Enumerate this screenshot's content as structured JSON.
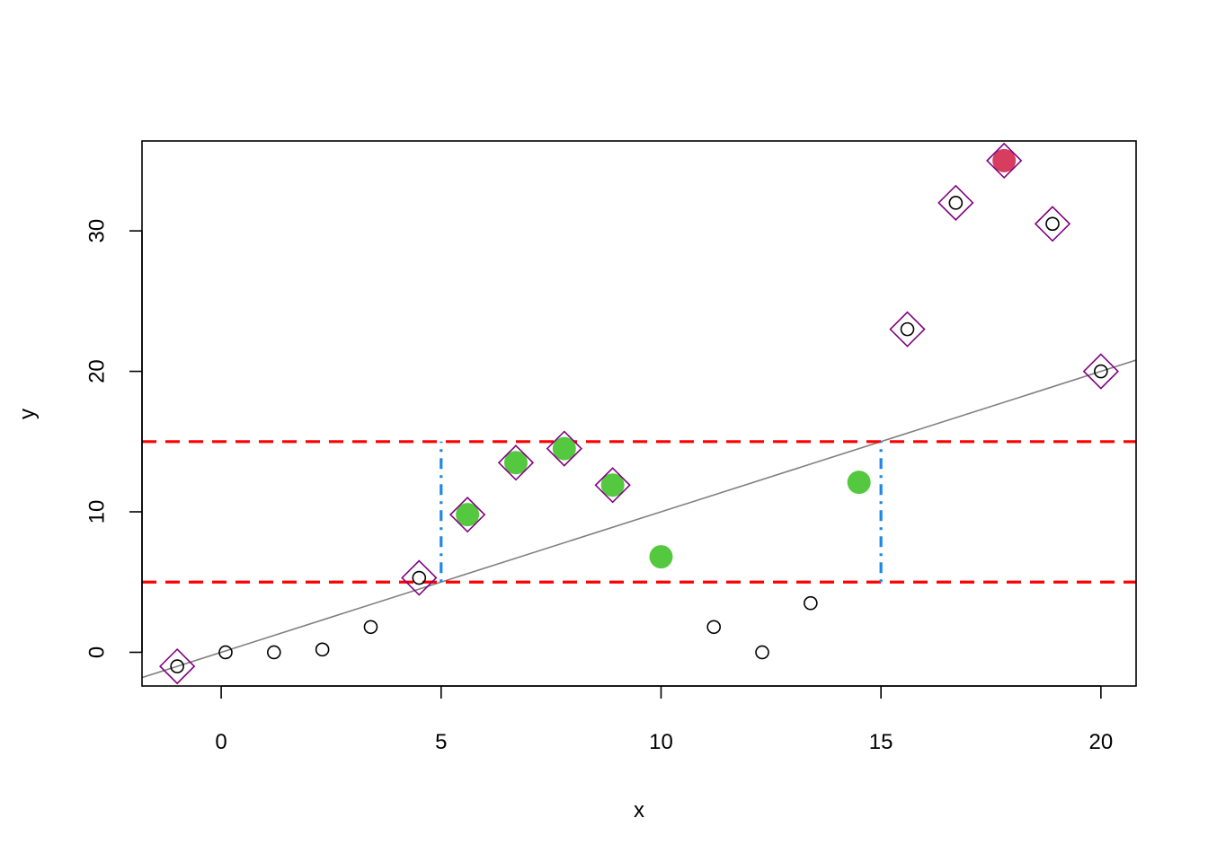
{
  "chart_data": {
    "type": "scatter",
    "xlabel": "x",
    "ylabel": "y",
    "xlim": [
      -1.8,
      20.8
    ],
    "ylim": [
      -2.4,
      36.4
    ],
    "x_ticks": [
      0,
      5,
      10,
      15,
      20
    ],
    "y_ticks": [
      0,
      10,
      20,
      30
    ],
    "grid": false,
    "legend": "none",
    "series": [
      {
        "marker": "open-circle",
        "color": "#000000",
        "points": [
          {
            "x": -1.0,
            "y": -1.0
          },
          {
            "x": 0.1,
            "y": 0.0
          },
          {
            "x": 1.2,
            "y": 0.0
          },
          {
            "x": 2.3,
            "y": 0.2
          },
          {
            "x": 3.4,
            "y": 1.8
          },
          {
            "x": 4.5,
            "y": 5.3
          },
          {
            "x": 11.2,
            "y": 1.8
          },
          {
            "x": 12.3,
            "y": 0.0
          },
          {
            "x": 13.4,
            "y": 3.5
          },
          {
            "x": 15.6,
            "y": 23.0
          },
          {
            "x": 16.7,
            "y": 32.0
          },
          {
            "x": 18.9,
            "y": 30.5
          },
          {
            "x": 20.0,
            "y": 20.0
          }
        ]
      },
      {
        "marker": "filled-circle",
        "color": "#54C93F",
        "points": [
          {
            "x": 5.6,
            "y": 9.8
          },
          {
            "x": 6.7,
            "y": 13.5
          },
          {
            "x": 7.8,
            "y": 14.5
          },
          {
            "x": 8.9,
            "y": 11.9
          },
          {
            "x": 10.0,
            "y": 6.8
          },
          {
            "x": 14.5,
            "y": 12.1
          }
        ]
      },
      {
        "marker": "filled-circle",
        "color": "#D63D5E",
        "points": [
          {
            "x": 17.8,
            "y": 35.0
          }
        ]
      },
      {
        "marker": "open-diamond",
        "color": "#800080",
        "points": [
          {
            "x": -1.0,
            "y": -1.0
          },
          {
            "x": 4.5,
            "y": 5.3
          },
          {
            "x": 5.6,
            "y": 9.8
          },
          {
            "x": 6.7,
            "y": 13.5
          },
          {
            "x": 7.8,
            "y": 14.5
          },
          {
            "x": 8.9,
            "y": 11.9
          },
          {
            "x": 15.6,
            "y": 23.0
          },
          {
            "x": 16.7,
            "y": 32.0
          },
          {
            "x": 17.8,
            "y": 35.0
          },
          {
            "x": 18.9,
            "y": 30.5
          },
          {
            "x": 20.0,
            "y": 20.0
          }
        ]
      }
    ],
    "reference_lines": {
      "regression_line": {
        "intercept": 0.0,
        "slope": 1.0,
        "color": "#808080"
      },
      "horizontal_dashed": {
        "y": [
          5,
          15
        ],
        "color": "#FF0000"
      },
      "vertical_dotdash": [
        {
          "x": 5,
          "y_from": 5,
          "y_to": 15
        },
        {
          "x": 15,
          "y_from": 5,
          "y_to": 15
        }
      ],
      "vertical_color": "#1E88E5"
    }
  }
}
